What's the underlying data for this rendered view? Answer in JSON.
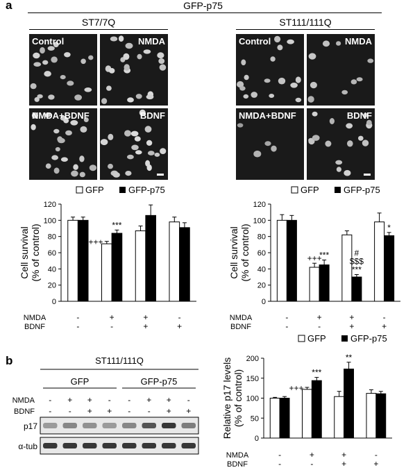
{
  "figure": {
    "panel_a_letter": "a",
    "panel_b_letter": "b",
    "header_title": "GFP-p75"
  },
  "micrographs": [
    {
      "group_label": "ST7/7Q",
      "tiles": [
        {
          "label": "Control",
          "scale_bar": false
        },
        {
          "label": "NMDA",
          "scale_bar": false
        },
        {
          "label": "NMDA+BDNF",
          "scale_bar": false
        },
        {
          "label": "BDNF",
          "scale_bar": true
        }
      ]
    },
    {
      "group_label": "ST111/111Q",
      "tiles": [
        {
          "label": "Control",
          "scale_bar": false
        },
        {
          "label": "NMDA",
          "scale_bar": false
        },
        {
          "label": "NMDA+BDNF",
          "scale_bar": false
        },
        {
          "label": "BDNF",
          "scale_bar": true
        }
      ]
    }
  ],
  "legend": {
    "open_label": "GFP",
    "filled_label": "GFP-p75"
  },
  "conditions": {
    "rows": [
      {
        "label": "NMDA",
        "values": [
          "-",
          "+",
          "+",
          "-"
        ]
      },
      {
        "label": "BDNF",
        "values": [
          "-",
          "-",
          "+",
          "+"
        ]
      }
    ]
  },
  "chart_data": [
    {
      "type": "bar",
      "categories": [
        "Control",
        "NMDA",
        "NMDA+BDNF",
        "BDNF"
      ],
      "series": [
        {
          "name": "GFP",
          "values": [
            100,
            71,
            87,
            98
          ],
          "errors": [
            4,
            3,
            6,
            6
          ]
        },
        {
          "name": "GFP-p75",
          "values": [
            100,
            84,
            106,
            91
          ],
          "errors": [
            4,
            4,
            13,
            6
          ]
        }
      ],
      "title": "",
      "xlabel": "",
      "ylabel_lines": [
        "Cell survival",
        "(% of control)"
      ],
      "ylim": [
        0,
        120
      ],
      "yticks": [
        0,
        20,
        40,
        60,
        80,
        100,
        120
      ],
      "annotations": [
        {
          "category": 1,
          "series": 0,
          "lines": [
            "+++"
          ],
          "side": "left"
        },
        {
          "category": 1,
          "series": 1,
          "lines": [
            "***"
          ],
          "side": "top"
        }
      ]
    },
    {
      "type": "bar",
      "categories": [
        "Control",
        "NMDA",
        "NMDA+BDNF",
        "BDNF"
      ],
      "series": [
        {
          "name": "GFP",
          "values": [
            100,
            42,
            82,
            98
          ],
          "errors": [
            7,
            5,
            5,
            11
          ]
        },
        {
          "name": "GFP-p75",
          "values": [
            100,
            45,
            30,
            81
          ],
          "errors": [
            6,
            6,
            3,
            4
          ]
        }
      ],
      "title": "",
      "xlabel": "",
      "ylabel_lines": [
        "Cell survival",
        "(% of control)"
      ],
      "ylim": [
        0,
        120
      ],
      "yticks": [
        0,
        20,
        40,
        60,
        80,
        100,
        120
      ],
      "annotations": [
        {
          "category": 1,
          "series": 0,
          "lines": [
            "+++"
          ],
          "side": "top"
        },
        {
          "category": 1,
          "series": 1,
          "lines": [
            "***"
          ],
          "side": "top"
        },
        {
          "category": 2,
          "series": 1,
          "lines": [
            "#",
            "$$$",
            "***"
          ],
          "side": "top"
        },
        {
          "category": 3,
          "series": 1,
          "lines": [
            "*"
          ],
          "side": "top"
        }
      ]
    },
    {
      "type": "bar",
      "categories": [
        "Control",
        "NMDA",
        "NMDA+BDNF",
        "BDNF"
      ],
      "series": [
        {
          "name": "GFP",
          "values": [
            100,
            122,
            104,
            112
          ],
          "errors": [
            2,
            5,
            13,
            9
          ]
        },
        {
          "name": "GFP-p75",
          "values": [
            100,
            144,
            173,
            111
          ],
          "errors": [
            4,
            8,
            17,
            6
          ]
        }
      ],
      "title": "",
      "xlabel": "",
      "ylabel_lines": [
        "Relative p17 levels",
        "(% of control)"
      ],
      "ylim": [
        0,
        200
      ],
      "yticks": [
        0,
        50,
        100,
        150,
        200
      ],
      "annotations": [
        {
          "category": 1,
          "series": 0,
          "lines": [
            "+++"
          ],
          "side": "left"
        },
        {
          "category": 1,
          "series": 1,
          "lines": [
            "***"
          ],
          "side": "top"
        },
        {
          "category": 2,
          "series": 1,
          "lines": [
            "**"
          ],
          "side": "top"
        }
      ]
    }
  ],
  "blot": {
    "cell_line": "ST111/111Q",
    "groups": [
      {
        "label": "GFP"
      },
      {
        "label": "GFP-p75"
      }
    ],
    "rows": [
      {
        "label": "NMDA",
        "values": [
          "-",
          "+",
          "+",
          "-",
          "-",
          "+",
          "+",
          "-"
        ]
      },
      {
        "label": "BDNF",
        "values": [
          "-",
          "-",
          "+",
          "+",
          "-",
          "-",
          "+",
          "+"
        ]
      }
    ],
    "bands": [
      {
        "label": "p17",
        "intensities": [
          0.35,
          0.45,
          0.4,
          0.35,
          0.45,
          0.7,
          0.85,
          0.5
        ]
      },
      {
        "label": "α-tub",
        "intensities": [
          0.85,
          0.85,
          0.85,
          0.85,
          0.85,
          0.85,
          0.85,
          0.85
        ]
      }
    ]
  }
}
